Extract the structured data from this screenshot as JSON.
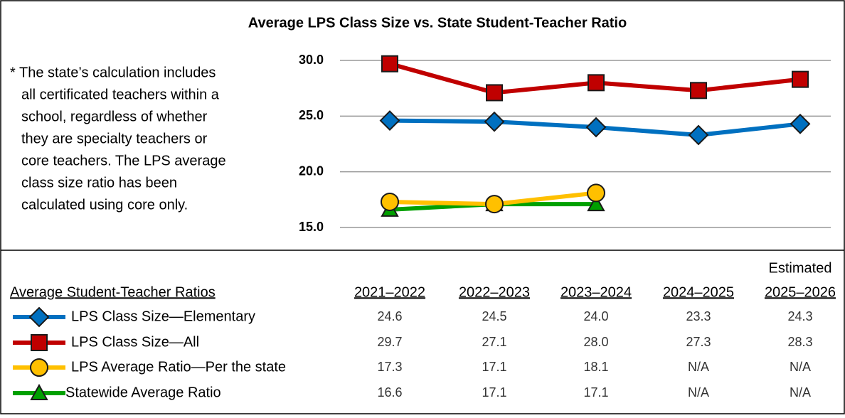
{
  "chart_data": {
    "type": "line",
    "title": "Average LPS Class Size vs. State Student-Teacher Ratio",
    "note": [
      "* The state’s calculation includes",
      "all certificated teachers within a",
      "school, regardless of whether",
      "they are specialty teachers or",
      "core teachers. The LPS average",
      "class size ratio has been",
      "calculated using core only."
    ],
    "categories": [
      "2021–2022",
      "2022–2023",
      "2023–2024",
      "2024–2025",
      "2025–2026"
    ],
    "estimated_note": "Estimated",
    "table_header": "Average Student-Teacher Ratios",
    "ylim": [
      15,
      30
    ],
    "yticks": [
      {
        "value": 15,
        "label": "15.0"
      },
      {
        "value": 20,
        "label": "20.0"
      },
      {
        "value": 25,
        "label": "25.0"
      },
      {
        "value": 30,
        "label": "30.0"
      }
    ],
    "grid": true,
    "series": [
      {
        "name": "LPS Class Size—Elementary",
        "color": "#0070c0",
        "marker": "diamond",
        "values": [
          24.6,
          24.5,
          24.0,
          23.3,
          24.3
        ],
        "value_labels": [
          "24.6",
          "24.5",
          "24.0",
          "23.3",
          "24.3"
        ]
      },
      {
        "name": "LPS Class Size—All",
        "color": "#c00000",
        "marker": "square",
        "values": [
          29.7,
          27.1,
          28.0,
          27.3,
          28.3
        ],
        "value_labels": [
          "29.7",
          "27.1",
          "28.0",
          "27.3",
          "28.3"
        ]
      },
      {
        "name": "LPS Average Ratio—Per the state",
        "color": "#ffc000",
        "marker": "circle",
        "values": [
          17.3,
          17.1,
          18.1,
          null,
          null
        ],
        "value_labels": [
          "17.3",
          "17.1",
          "18.1",
          "N/A",
          "N/A"
        ]
      },
      {
        "name": "Statewide Average Ratio",
        "color": "#00a000",
        "marker": "triangle",
        "values": [
          16.6,
          17.1,
          17.1,
          null,
          null
        ],
        "value_labels": [
          "16.6",
          "17.1",
          "17.1",
          "N/A",
          "N/A"
        ]
      }
    ]
  }
}
